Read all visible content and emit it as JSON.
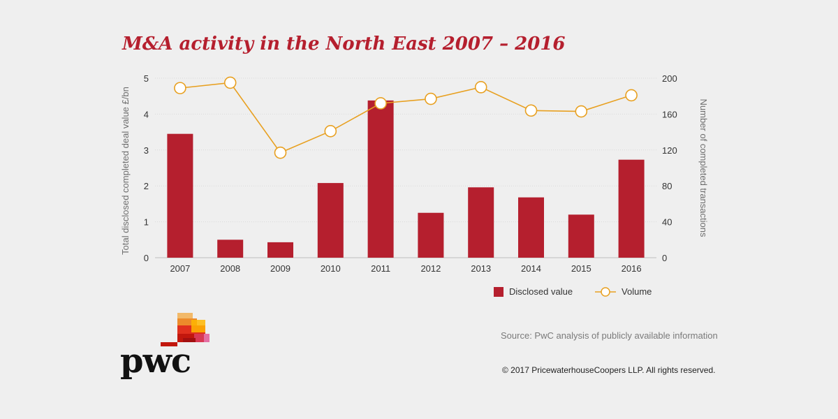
{
  "title": "M&A activity in the North East 2007 – 2016",
  "chart_data": {
    "type": "bar+line",
    "categories": [
      "2007",
      "2008",
      "2009",
      "2010",
      "2011",
      "2012",
      "2013",
      "2014",
      "2015",
      "2016"
    ],
    "series": [
      {
        "name": "Disclosed value",
        "type": "bar",
        "axis": "left",
        "color": "#b51f2e",
        "values": [
          3.45,
          0.5,
          0.43,
          2.08,
          4.38,
          1.25,
          1.96,
          1.68,
          1.2,
          2.73
        ]
      },
      {
        "name": "Volume",
        "type": "line",
        "axis": "right",
        "color": "#e8a020",
        "values": [
          189,
          195,
          117,
          141,
          172,
          177,
          190,
          164,
          163,
          181
        ]
      }
    ],
    "ylabel_left": "Total disclosed completed deal value £/bn",
    "ylabel_right": "Number of completed transactions",
    "yticks_left": [
      "0",
      "1",
      "2",
      "3",
      "4",
      "5"
    ],
    "yticks_right": [
      "0",
      "40",
      "80",
      "120",
      "160",
      "200"
    ],
    "ylim_left": [
      0,
      5
    ],
    "ylim_right": [
      0,
      200
    ],
    "grid": true,
    "legend": "bottom-right"
  },
  "legend": {
    "bar_label": "Disclosed value",
    "line_label": "Volume"
  },
  "source": "Source: PwC analysis of publicly available information",
  "copyright": "© 2017 PricewaterhouseCoopers LLP. All rights reserved.",
  "brand": {
    "name": "pwc",
    "icon": "pwc-logo-icon"
  }
}
